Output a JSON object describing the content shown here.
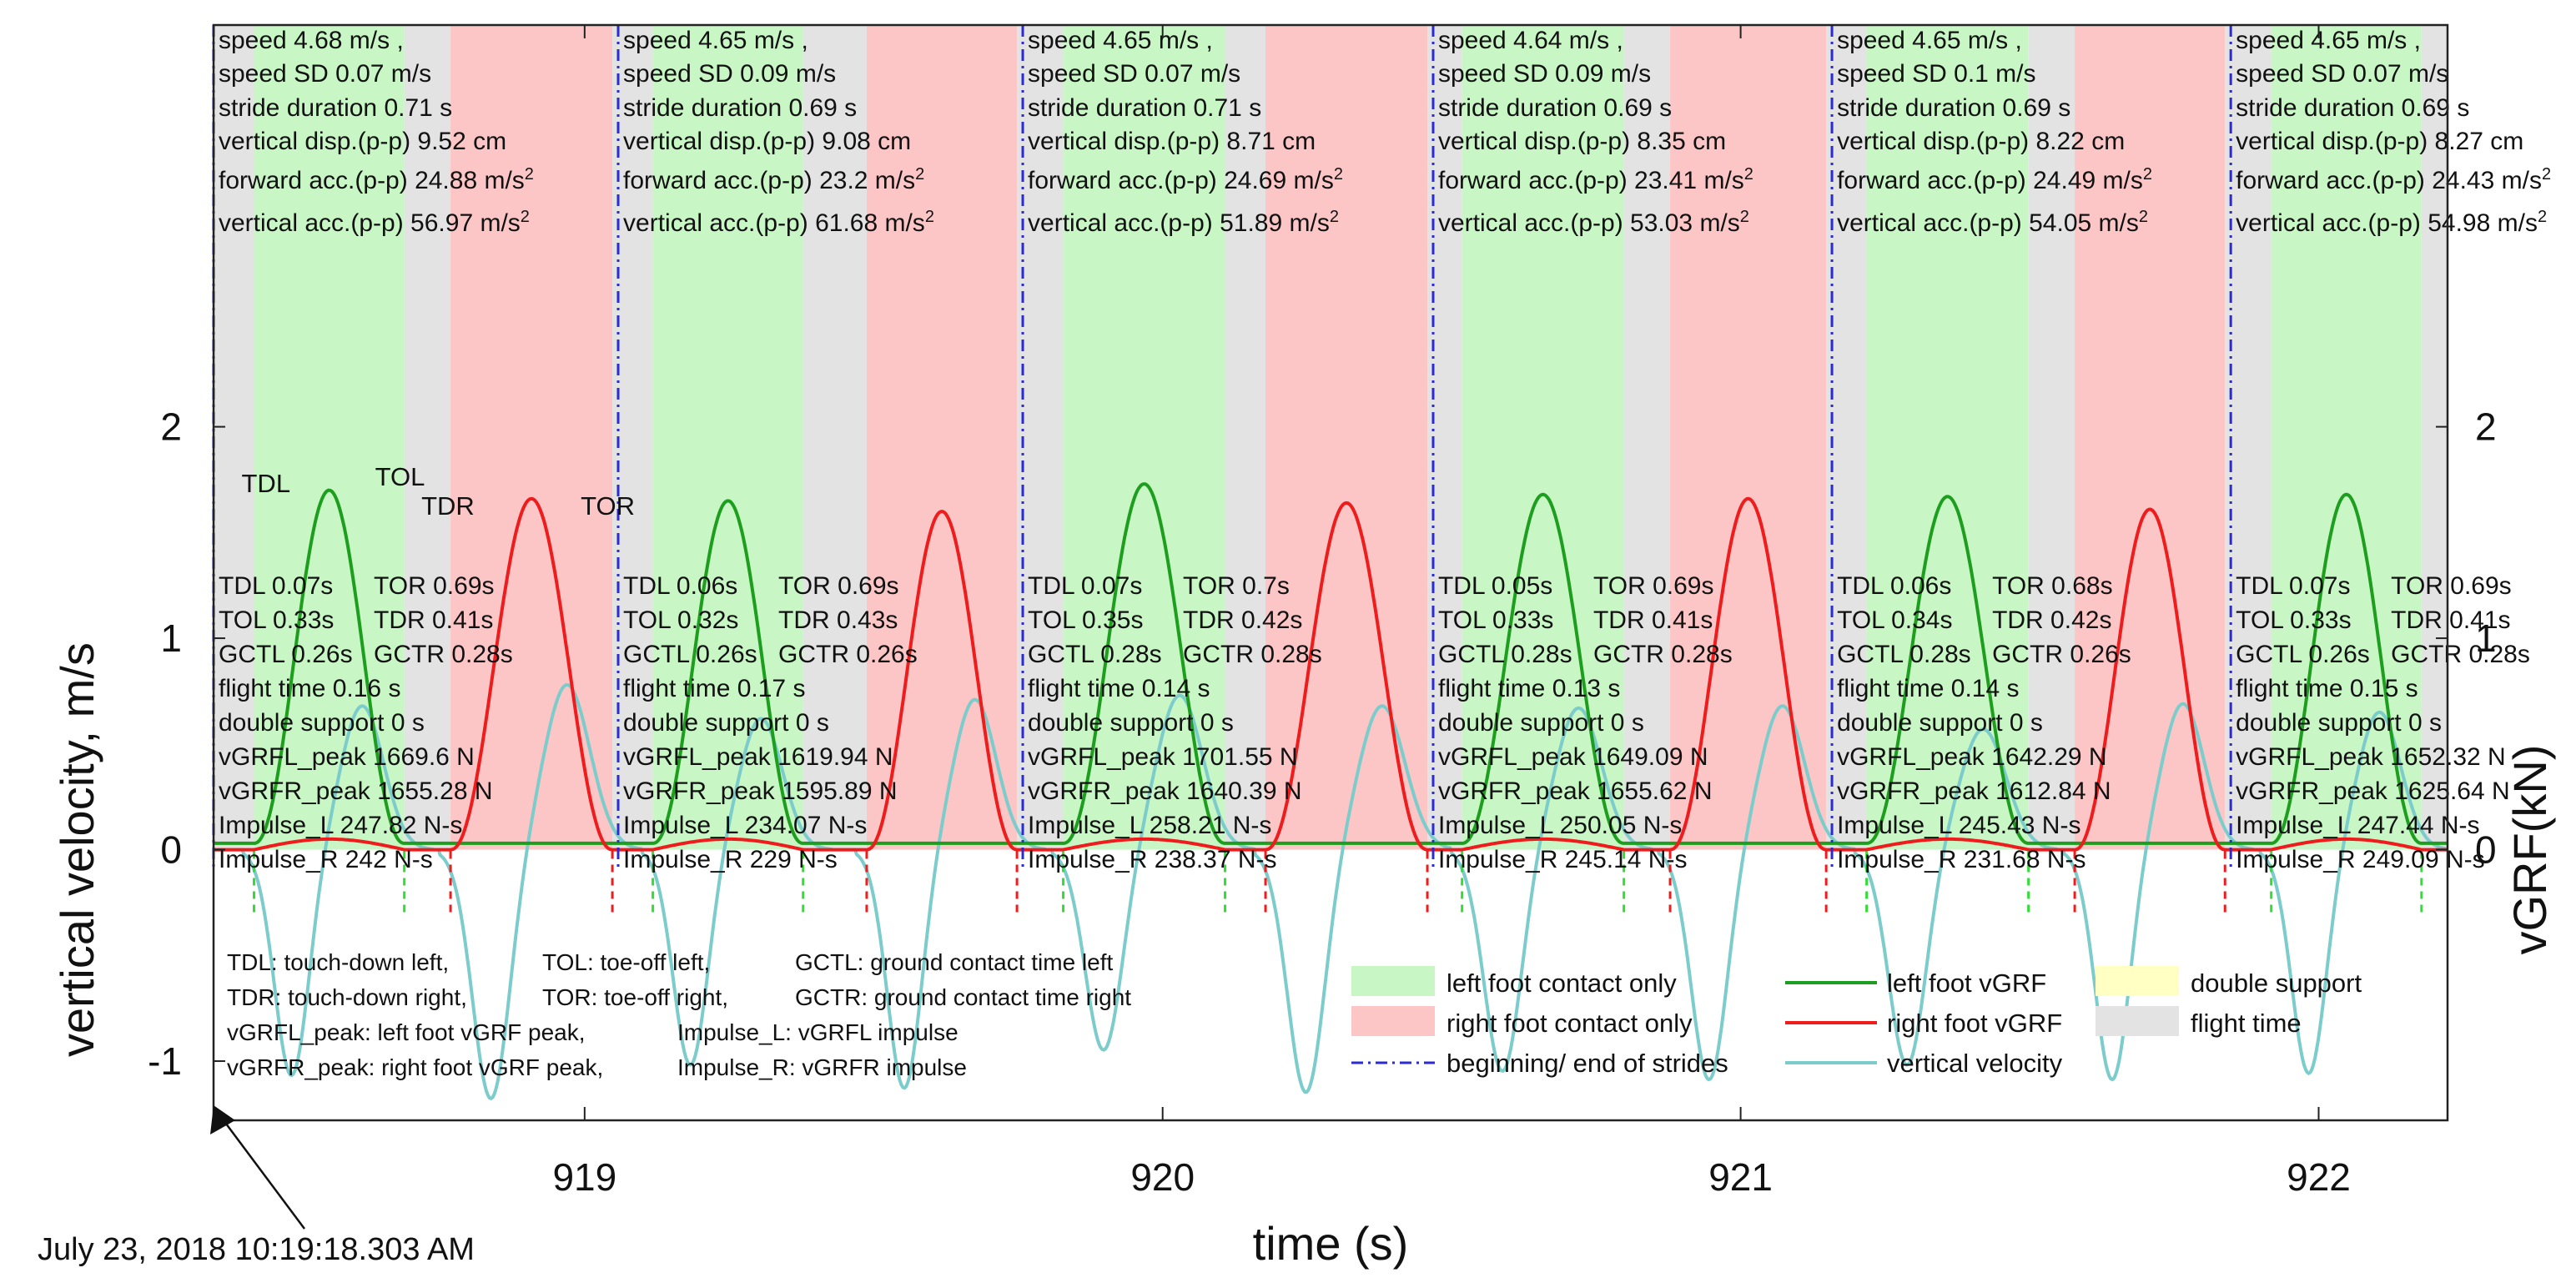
{
  "chart_data": {
    "type": "line",
    "xlabel": "time (s)",
    "ylabel_left": "vertical velocity, m/s",
    "ylabel_right": "vGRF(kN)",
    "xlim": [
      918.358,
      922.223
    ],
    "ylim": [
      -1.28,
      3.9
    ],
    "x_ticks": [
      919,
      920,
      921,
      922
    ],
    "x_tick_labels": [
      "919",
      "920",
      "921",
      "922"
    ],
    "y_ticks": [
      -1,
      0,
      1,
      2
    ],
    "y_tick_labels": [
      "-1",
      "0",
      "1",
      "2"
    ],
    "y2_ticks": [
      0,
      1,
      2
    ],
    "y2_tick_labels": [
      "0",
      "1",
      "2"
    ],
    "timestamp": "July 23, 2018 10:19:18.303 AM",
    "colors": {
      "left_contact": "#c8f7c5",
      "right_contact": "#fdc6c6",
      "flight": "#e3e3e3",
      "double_support": "#ffffc4",
      "left_vgrf": "#1e9e1e",
      "right_vgrf": "#ee1c1c",
      "velocity": "#7ccccc",
      "stride_line": "#2b2bd6",
      "td_left_marker": "#33dd33",
      "td_right_marker": "#ee1c1c"
    },
    "strides": [
      {
        "start": 918.358,
        "tdl": 918.428,
        "tol": 918.688,
        "tdr": 918.768,
        "tor": 919.048,
        "end": 919.058,
        "stats": [
          "speed  4.68 m/s ,",
          "speed SD  0.07 m/s",
          "stride duration  0.71 s",
          "vertical disp.(p-p)  9.52 cm",
          "forward acc.(p-p)  24.88 m/s",
          "vertical acc.(p-p)  56.97 m/s"
        ],
        "params": [
          [
            "TDL 0.07s",
            "TOR  0.69s"
          ],
          [
            "TOL 0.33s",
            "TDR  0.41s"
          ],
          [
            "GCTL 0.26s",
            "GCTR  0.28s"
          ]
        ],
        "details": [
          "flight time  0.16 s",
          "double support  0 s",
          "vGRFL_peak  1669.6 N",
          "vGRFR_peak  1655.28 N",
          "Impulse_L  247.82 N-s",
          "Impulse_R  242 N-s"
        ]
      },
      {
        "start": 919.058,
        "tdl": 919.118,
        "tol": 919.378,
        "tdr": 919.488,
        "tor": 919.748,
        "end": 919.758,
        "stats": [
          "speed  4.65 m/s ,",
          "speed SD  0.09 m/s",
          "stride duration  0.69 s",
          "vertical disp.(p-p)  9.08 cm",
          "forward acc.(p-p)  23.2 m/s",
          "vertical acc.(p-p)  61.68 m/s"
        ],
        "params": [
          [
            "TDL 0.06s",
            "TOR  0.69s"
          ],
          [
            "TOL 0.32s",
            "TDR  0.43s"
          ],
          [
            "GCTL 0.26s",
            "GCTR  0.26s"
          ]
        ],
        "details": [
          "flight time  0.17 s",
          "double support  0 s",
          "vGRFL_peak  1619.94 N",
          "vGRFR_peak  1595.89 N",
          "Impulse_L  234.07 N-s",
          "Impulse_R  229 N-s"
        ]
      },
      {
        "start": 919.758,
        "tdl": 919.828,
        "tol": 920.108,
        "tdr": 920.178,
        "tor": 920.458,
        "end": 920.468,
        "stats": [
          "speed  4.65 m/s ,",
          "speed SD  0.07 m/s",
          "stride duration  0.71 s",
          "vertical disp.(p-p)  8.71 cm",
          "forward acc.(p-p)  24.69 m/s",
          "vertical acc.(p-p)  51.89 m/s"
        ],
        "params": [
          [
            "TDL 0.07s",
            "TOR  0.7s"
          ],
          [
            "TOL 0.35s",
            "TDR  0.42s"
          ],
          [
            "GCTL 0.28s",
            "GCTR  0.28s"
          ]
        ],
        "details": [
          "flight time  0.14 s",
          "double support  0 s",
          "vGRFL_peak  1701.55 N",
          "vGRFR_peak  1640.39 N",
          "Impulse_L  258.21 N-s",
          "Impulse_R  238.37 N-s"
        ]
      },
      {
        "start": 920.468,
        "tdl": 920.518,
        "tol": 920.798,
        "tdr": 920.878,
        "tor": 921.148,
        "end": 921.158,
        "stats": [
          "speed  4.64 m/s ,",
          "speed SD  0.09 m/s",
          "stride duration  0.69 s",
          "vertical disp.(p-p)  8.35 cm",
          "forward acc.(p-p)  23.41 m/s",
          "vertical acc.(p-p)  53.03 m/s"
        ],
        "params": [
          [
            "TDL 0.05s",
            "TOR  0.69s"
          ],
          [
            "TOL 0.33s",
            "TDR  0.41s"
          ],
          [
            "GCTL 0.28s",
            "GCTR  0.28s"
          ]
        ],
        "details": [
          "flight time  0.13 s",
          "double support  0 s",
          "vGRFL_peak  1649.09 N",
          "vGRFR_peak  1655.62 N",
          "Impulse_L  250.05 N-s",
          "Impulse_R  245.14 N-s"
        ]
      },
      {
        "start": 921.158,
        "tdl": 921.218,
        "tol": 921.498,
        "tdr": 921.578,
        "tor": 921.838,
        "end": 921.848,
        "stats": [
          "speed  4.65 m/s ,",
          "speed SD  0.1 m/s",
          "stride duration  0.69 s",
          "vertical disp.(p-p)  8.22 cm",
          "forward acc.(p-p)  24.49 m/s",
          "vertical acc.(p-p)  54.05 m/s"
        ],
        "params": [
          [
            "TDL 0.06s",
            "TOR  0.68s"
          ],
          [
            "TOL 0.34s",
            "TDR  0.42s"
          ],
          [
            "GCTL 0.28s",
            "GCTR  0.26s"
          ]
        ],
        "details": [
          "flight time  0.14 s",
          "double support  0 s",
          "vGRFL_peak  1642.29 N",
          "vGRFR_peak  1612.84 N",
          "Impulse_L  245.43 N-s",
          "Impulse_R  231.68 N-s"
        ]
      },
      {
        "start": 921.848,
        "tdl": 921.918,
        "tol": 922.178,
        "tdr": 922.258,
        "tor": 922.538,
        "end": 922.548,
        "stats": [
          "speed  4.65 m/s ,",
          "speed SD  0.07 m/s",
          "stride duration  0.69 s",
          "vertical disp.(p-p)  8.27 cm",
          "forward acc.(p-p)  24.43 m/s",
          "vertical acc.(p-p)  54.98 m/s"
        ],
        "params": [
          [
            "TDL 0.07s",
            "TOR  0.69s"
          ],
          [
            "TOL 0.33s",
            "TDR  0.41s"
          ],
          [
            "GCTL 0.26s",
            "GCTR  0.28s"
          ]
        ],
        "details": [
          "flight time  0.15 s",
          "double support  0 s",
          "vGRFL_peak  1652.32 N",
          "vGRFR_peak  1625.64 N",
          "Impulse_L  247.44 N-s",
          "Impulse_R  249.09 N-s"
        ]
      }
    ],
    "acc_unit_superscript": "2",
    "event_labels": [
      "TDL",
      "TOL",
      "TDR",
      "TOR"
    ],
    "series": [
      {
        "name": "left foot vGRF",
        "axis": "right",
        "peaks_kN": [
          1.67,
          1.62,
          1.7,
          1.65,
          1.64,
          1.65
        ]
      },
      {
        "name": "right foot vGRF",
        "axis": "right",
        "peaks_kN": [
          1.66,
          1.6,
          1.64,
          1.66,
          1.61,
          1.63
        ]
      },
      {
        "name": "vertical velocity",
        "axis": "left",
        "min_left": [
          -1.07,
          -1.02,
          -0.95,
          -1.05,
          -1.02,
          -1.06
        ],
        "max_left": [
          0.68,
          0.62,
          0.73,
          0.67,
          0.57,
          0.65
        ],
        "min_right": [
          -1.18,
          -1.13,
          -1.15,
          -1.09,
          -1.09,
          -1.12
        ],
        "max_right": [
          0.78,
          0.71,
          0.68,
          0.68,
          0.69,
          0.63
        ]
      }
    ],
    "abbreviations": [
      [
        "TDL: touch-down left,",
        "TOL: toe-off left,",
        "GCTL: ground contact time left"
      ],
      [
        "TDR: touch-down right,",
        "TOR: toe-off right,",
        "GCTR: ground contact time right"
      ],
      [
        "vGRFL_peak: left foot vGRF peak,",
        "Impulse_L: vGRFL impulse"
      ],
      [
        "vGRFR_peak: right foot vGRF peak,",
        "Impulse_R: vGRFR impulse"
      ]
    ],
    "legend": [
      {
        "key": "left_contact",
        "label": "left foot contact only",
        "kind": "patch"
      },
      {
        "key": "left_vgrf",
        "label": "left foot vGRF",
        "kind": "line"
      },
      {
        "key": "double_support",
        "label": "double support",
        "kind": "patch"
      },
      {
        "key": "right_contact",
        "label": "right foot contact only",
        "kind": "patch"
      },
      {
        "key": "right_vgrf",
        "label": "right foot vGRF",
        "kind": "line"
      },
      {
        "key": "flight",
        "label": "flight time",
        "kind": "patch"
      },
      {
        "key": "stride_line",
        "label": "beginning/ end of strides",
        "kind": "dashdot"
      },
      {
        "key": "velocity",
        "label": "vertical velocity",
        "kind": "line"
      }
    ]
  }
}
